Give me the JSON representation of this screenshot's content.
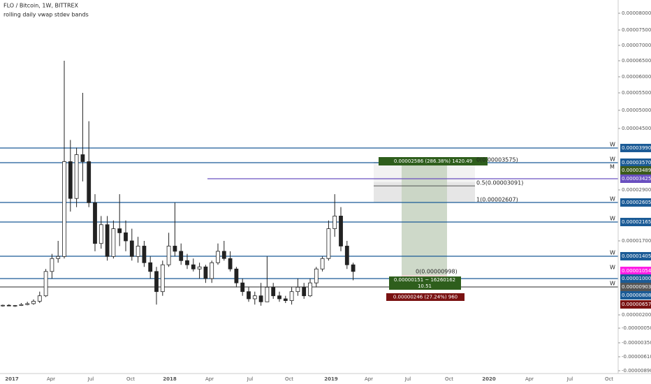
{
  "header": {
    "title": "FLO / Bitcoin, 1W, BITTREX",
    "subtitle": "rolling daily vwap stdev bands"
  },
  "chart_data": {
    "type": "candlestick",
    "open": [
      6e-06,
      6.2e-06,
      5.9e-06,
      6.1e-06,
      6.5e-06,
      6.7e-06,
      7.1e-06,
      8e-06,
      1.05e-05,
      1.35e-05,
      1.4e-05,
      3.6e-05,
      2.7e-05,
      3.8e-05,
      3.6e-05,
      2.6e-05,
      1.65e-05,
      2.1e-05,
      1.4e-05,
      2e-05,
      1.9e-05,
      1.7e-05,
      1.4e-05,
      1.6e-05,
      1.25e-05,
      1.05e-05,
      8.5e-06,
      1.2e-05,
      1.6e-05,
      1.5e-05,
      1.3e-05,
      1.2e-05,
      1.1e-05,
      1.15e-05,
      1e-05,
      1.25e-05,
      1.5e-05,
      1.35e-05,
      1.1e-05,
      9.5e-06,
      8.5e-06,
      7.5e-06,
      8e-06,
      7e-06,
      9e-06,
      8e-06,
      7.5e-06,
      7.2e-06,
      8.5e-06,
      9e-06,
      8e-06,
      9.5e-06,
      1.1e-05,
      1.35e-05,
      2e-05,
      2.3e-05,
      1.6e-05,
      1.2e-05
    ],
    "high": [
      6.5e-06,
      6.6e-06,
      6.3e-06,
      6.8e-06,
      7e-06,
      7.4e-06,
      8.5e-06,
      1.1e-05,
      1.45e-05,
      1.7e-05,
      6.5e-05,
      4.2e-05,
      4e-05,
      5.5e-05,
      4.7e-05,
      2.8e-05,
      2.3e-05,
      2.3e-05,
      2.2e-05,
      2.8e-05,
      2.2e-05,
      2e-05,
      1.8e-05,
      1.7e-05,
      1.4e-05,
      1.15e-05,
      1.3e-05,
      1.9e-05,
      2.6e-05,
      1.65e-05,
      1.45e-05,
      1.35e-05,
      1.25e-05,
      1.2e-05,
      1.3e-05,
      1.65e-05,
      1.7e-05,
      1.5e-05,
      1.15e-05,
      1e-05,
      9e-06,
      8.5e-06,
      9.5e-06,
      1.4e-05,
      9.5e-06,
      8.5e-06,
      8e-06,
      9e-06,
      1e-05,
      9.5e-06,
      1e-05,
      1.15e-05,
      1.4e-05,
      2.2e-05,
      2.8e-05,
      2.5e-05,
      1.7e-05,
      1.25e-05
    ],
    "low": [
      5.6e-06,
      5.8e-06,
      5.5e-06,
      5.9e-06,
      6.2e-06,
      6.4e-06,
      6.8e-06,
      7.8e-06,
      1e-05,
      1.25e-05,
      1.35e-05,
      2.4e-05,
      2.5e-05,
      3.3e-05,
      2.5e-05,
      1.5e-05,
      1.55e-05,
      1.3e-05,
      1.35e-05,
      1.6e-05,
      1.5e-05,
      1.3e-05,
      1.25e-05,
      1.15e-05,
      1e-05,
      6.5e-06,
      8e-06,
      1.15e-05,
      1.4e-05,
      1.2e-05,
      1.1e-05,
      1.05e-05,
      1e-05,
      9.5e-06,
      9.5e-06,
      1.2e-05,
      1.3e-05,
      1.05e-05,
      9e-06,
      8e-06,
      7e-06,
      6.5e-06,
      6e-06,
      7e-06,
      7.5e-06,
      7e-06,
      6.8e-06,
      6.5e-06,
      8e-06,
      7.5e-06,
      7.8e-06,
      9e-06,
      1.05e-05,
      1.3e-05,
      1.8e-05,
      1.5e-05,
      1.1e-05,
      9.8e-06
    ],
    "close": [
      6.2e-06,
      5.9e-06,
      6.1e-06,
      6.5e-06,
      6.7e-06,
      7.1e-06,
      8e-06,
      1.05e-05,
      1.35e-05,
      1.4e-05,
      3.6e-05,
      2.7e-05,
      3.8e-05,
      3.6e-05,
      2.6e-05,
      1.65e-05,
      2.1e-05,
      1.4e-05,
      2e-05,
      1.9e-05,
      1.7e-05,
      1.4e-05,
      1.6e-05,
      1.25e-05,
      1.05e-05,
      8.5e-06,
      1.2e-05,
      1.6e-05,
      1.5e-05,
      1.3e-05,
      1.2e-05,
      1.1e-05,
      1.15e-05,
      1e-05,
      1.25e-05,
      1.5e-05,
      1.35e-05,
      1.1e-05,
      9.5e-06,
      8.5e-06,
      7.5e-06,
      8e-06,
      7e-06,
      9e-06,
      8e-06,
      7.5e-06,
      7.2e-06,
      8.5e-06,
      9e-06,
      8e-06,
      9.5e-06,
      1.1e-05,
      1.35e-05,
      2e-05,
      2.3e-05,
      1.6e-05,
      1.2e-05,
      1.05e-05
    ],
    "yticks": [
      {
        "value": 8e-05,
        "label": "0.00008000"
      },
      {
        "value": 7.5e-05,
        "label": "0.00007500"
      },
      {
        "value": 7e-05,
        "label": "0.00007000"
      },
      {
        "value": 6.5e-05,
        "label": "0.00006500"
      },
      {
        "value": 6e-05,
        "label": "0.00006000"
      },
      {
        "value": 5.5e-05,
        "label": "0.00005500"
      },
      {
        "value": 5e-05,
        "label": "0.00005000"
      },
      {
        "value": 4.5e-05,
        "label": "0.00004500"
      },
      {
        "value": 2.9e-05,
        "label": "0.00002900"
      },
      {
        "value": 1.7e-05,
        "label": "0.00001700"
      },
      {
        "value": 2e-06,
        "label": "0.00000200"
      },
      {
        "value": -5e-07,
        "label": "-0.00000050"
      },
      {
        "value": -3.5e-06,
        "label": "-0.00000350"
      },
      {
        "value": -6.1e-06,
        "label": "-0.00000610"
      },
      {
        "value": -8.9e-06,
        "label": "-0.00000890"
      }
    ],
    "x_labels": [
      "2017",
      "Apr",
      "Jul",
      "Oct",
      "2018",
      "Apr",
      "Jul",
      "Oct",
      "2019",
      "Apr",
      "Jul",
      "Oct",
      "2020",
      "Apr",
      "Jul",
      "Oct"
    ]
  },
  "levels": [
    {
      "value": 3.99e-05,
      "label": "0.00003990",
      "color": "#1b5b96",
      "line": true,
      "marker": "W"
    },
    {
      "value": 3.57e-05,
      "label": "0.00003570",
      "color": "#1b5b96",
      "line": true,
      "marker": "W"
    },
    {
      "value": 3.489e-05,
      "label": "0.00003489",
      "color": "#3b5a1c",
      "line": false,
      "marker": "M"
    },
    {
      "value": 3.425e-05,
      "label": "0.00003425",
      "color": "#6a50c0",
      "line": true
    },
    {
      "value": 2.605e-05,
      "label": "0.00002605",
      "color": "#1b5b96",
      "line": true,
      "marker": "W"
    },
    {
      "value": 2.165e-05,
      "label": "0.00002165",
      "color": "#1b5b96",
      "line": true,
      "marker": "W"
    },
    {
      "value": 1.405e-05,
      "label": "0.00001405",
      "color": "#1b5b96",
      "line": true,
      "marker": "W"
    },
    {
      "value": 1.054e-05,
      "label": "0.00001054",
      "color": "#ff1ee6",
      "line": false,
      "marker": "W"
    },
    {
      "value": 1e-05,
      "label": "0.00001000",
      "color": "#1b5b96",
      "line": true
    },
    {
      "value": 9.03e-06,
      "label": "0.00000903",
      "color": "#555555",
      "line": true,
      "marker": "W"
    },
    {
      "value": 8.08e-06,
      "label": "0.00000808",
      "color": "#1b5b96",
      "line": false
    },
    {
      "value": 6.57e-06,
      "label": "0.00000657",
      "color": "#7a1212",
      "line": false
    }
  ],
  "fib": [
    {
      "value": 3.575e-05,
      "label": "0(0.00003575)"
    },
    {
      "value": 3.091e-05,
      "label": "0.5(0.00003091)"
    },
    {
      "value": 2.607e-05,
      "label": "1(0.00002607)"
    }
  ],
  "position": {
    "target": "0.00002586 (286.38%) 1420.49",
    "entry": "0(0.00000998)",
    "stats": "0.00000151 ~ 16260162",
    "ratio": "10.51",
    "stop": "0.00000246 (27.24%) 960"
  }
}
